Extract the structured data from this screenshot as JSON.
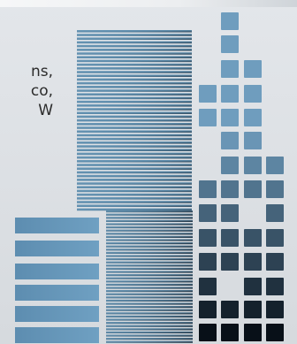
{
  "text_snippet": [
    "ns,",
    "co,",
    "W"
  ],
  "colors": {
    "background": "#d9dde2",
    "blue": "#5f8fae",
    "blue_light": "#6d9dbd",
    "dark": "#0d1a26",
    "text": "#2b2b2b"
  },
  "icons": [
    "decorative-bar-graphic"
  ]
}
